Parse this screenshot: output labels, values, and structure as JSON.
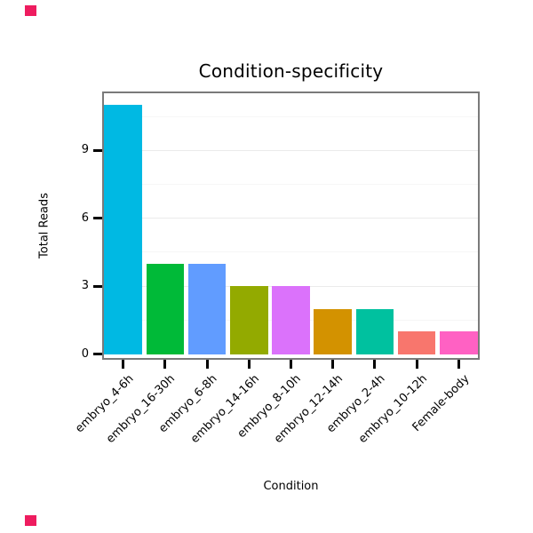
{
  "chart_data": {
    "type": "bar",
    "title": "Condition-specificity",
    "xlabel": "Condition",
    "ylabel": "Total Reads",
    "categories": [
      "embryo_4-6h",
      "embryo_16-30h",
      "embryo_6-8h",
      "embryo_14-16h",
      "embryo_8-10h",
      "embryo_12-14h",
      "embryo_2-4h",
      "embryo_10-12h",
      "Female-body"
    ],
    "values": [
      11,
      4,
      4,
      3,
      3,
      2,
      2,
      1,
      1
    ],
    "bar_colors": [
      "#00B9E3",
      "#00BA38",
      "#619CFF",
      "#93AA00",
      "#DB72FB",
      "#D39200",
      "#00C19F",
      "#F8766D",
      "#FF61C3"
    ],
    "yticks": [
      0,
      3,
      6,
      9
    ],
    "yticks_minor": [
      1.5,
      4.5,
      7.5,
      10.5
    ],
    "ylim": [
      0,
      11.6
    ],
    "grid": true,
    "legend": false,
    "marker_color": "#ee1c5f"
  }
}
